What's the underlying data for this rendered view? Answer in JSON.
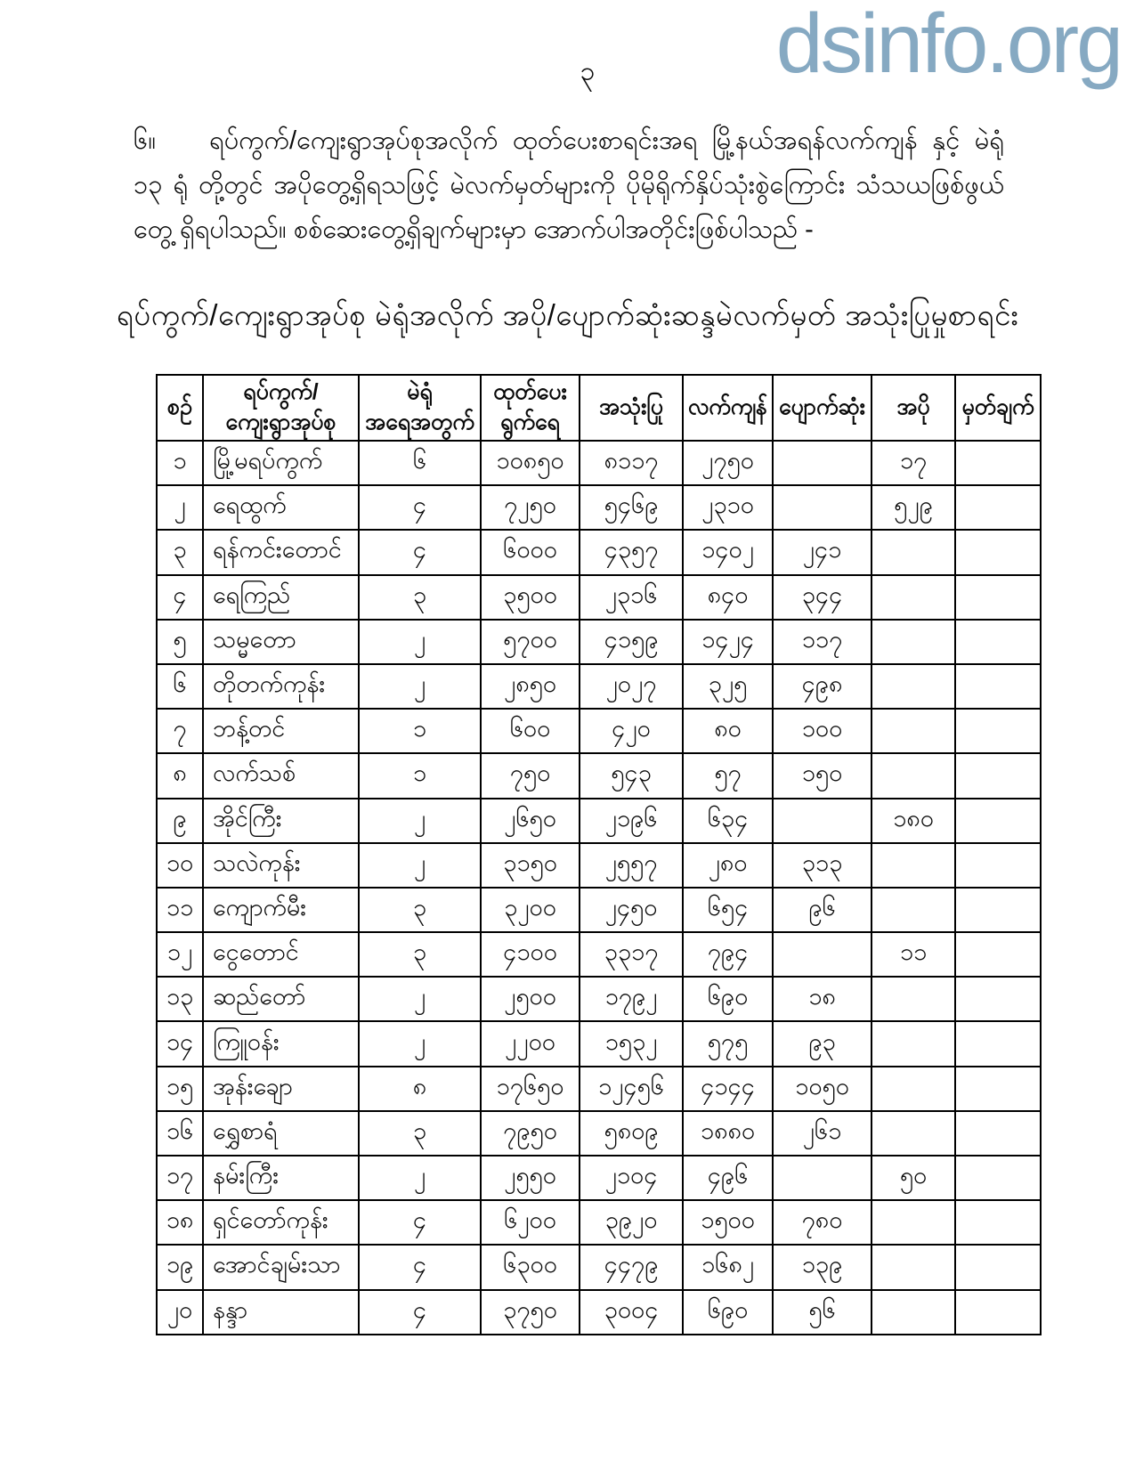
{
  "colors": {
    "watermark_blue": "#86a9c2",
    "text": "#0a0a0a",
    "table_border": "#000000",
    "background": "#ffffff"
  },
  "page": {
    "number": "၃",
    "watermark": "dsinfo.org"
  },
  "paragraph": {
    "number": "၆။",
    "text": "ရပ်ကွက်/ကျေးရွာအုပ်စုအလိုက် ထုတ်ပေးစာရင်းအရ မြို့နယ်အရန်လက်ကျန် နှင့် မဲရုံ ၁၃ ရုံ တို့တွင် အပိုတွေ့ရှိရသဖြင့် မဲလက်မှတ်များကို ပိုမိုရိုက်နှိပ်သုံးစွဲကြောင်း သံသယဖြစ်ဖွယ်တွေ့ ရှိရပါသည်။ စစ်ဆေးတွေ့ရှိချက်များမှာ အောက်ပါအတိုင်းဖြစ်ပါသည် -"
  },
  "table": {
    "title": "ရပ်ကွက်/ကျေးရွာအုပ်စု မဲရုံအလိုက် အပို/ပျောက်ဆုံးဆန္ဒမဲလက်မှတ် အသုံးပြုမှုစာရင်း",
    "headers": [
      "စဉ်",
      "ရပ်ကွက်/\nကျေးရွာအုပ်စု",
      "မဲရုံ\nအရေအတွက်",
      "ထုတ်ပေး\nရွက်ရေ",
      "အသုံးပြု",
      "လက်ကျန်",
      "ပျောက်ဆုံး",
      "အပို",
      "မှတ်ချက်"
    ],
    "rows": [
      [
        "၁",
        "မြို့မရပ်ကွက်",
        "၆",
        "၁၀၈၅၀",
        "၈၁၁၇",
        "၂၇၅၀",
        "",
        "၁၇",
        ""
      ],
      [
        "၂",
        "ရေထွက်",
        "၄",
        "၇၂၅၀",
        "၅၄၆၉",
        "၂၃၁၀",
        "",
        "၅၂၉",
        ""
      ],
      [
        "၃",
        "ရန်ကင်းတောင်",
        "၄",
        "၆၀၀၀",
        "၄၃၅၇",
        "၁၄၀၂",
        "၂၄၁",
        "",
        ""
      ],
      [
        "၄",
        "ရေကြည်",
        "၃",
        "၃၅၀၀",
        "၂၃၁၆",
        "၈၄၀",
        "၃၄၄",
        "",
        ""
      ],
      [
        "၅",
        "သမ္မတော",
        "၂",
        "၅၇၀၀",
        "၄၁၅၉",
        "၁၄၂၄",
        "၁၁၇",
        "",
        ""
      ],
      [
        "၆",
        "တိုတက်ကုန်း",
        "၂",
        "၂၈၅၀",
        "၂၀၂၇",
        "၃၂၅",
        "၄၉၈",
        "",
        ""
      ],
      [
        "၇",
        "ဘန့်တင်",
        "၁",
        "၆၀၀",
        "၄၂၀",
        "၈၀",
        "၁၀၀",
        "",
        ""
      ],
      [
        "၈",
        "လက်သစ်",
        "၁",
        "၇၅၀",
        "၅၄၃",
        "၅၇",
        "၁၅၀",
        "",
        ""
      ],
      [
        "၉",
        "အိုင်ကြီး",
        "၂",
        "၂၆၅၀",
        "၂၁၉၆",
        "၆၃၄",
        "",
        "၁၈၀",
        ""
      ],
      [
        "၁၀",
        "သလဲကုန်း",
        "၂",
        "၃၁၅၀",
        "၂၅၅၇",
        "၂၈၀",
        "၃၁၃",
        "",
        ""
      ],
      [
        "၁၁",
        "ကျောက်မီး",
        "၃",
        "၃၂၀၀",
        "၂၄၅၀",
        "၆၅၄",
        "၉၆",
        "",
        ""
      ],
      [
        "၁၂",
        "ငွေတောင်",
        "၃",
        "၄၁၀၀",
        "၃၃၁၇",
        "၇၉၄",
        "",
        "၁၁",
        ""
      ],
      [
        "၁၃",
        "ဆည်တော်",
        "၂",
        "၂၅၀၀",
        "၁၇၉၂",
        "၆၉၀",
        "၁၈",
        "",
        ""
      ],
      [
        "၁၄",
        "ကြူဝန်း",
        "၂",
        "၂၂၀၀",
        "၁၅၃၂",
        "၅၇၅",
        "၉၃",
        "",
        ""
      ],
      [
        "၁၅",
        "အုန်းချော",
        "၈",
        "၁၇၆၅၀",
        "၁၂၄၅၆",
        "၄၁၄၄",
        "၁၀၅၀",
        "",
        ""
      ],
      [
        "၁၆",
        "ရွှေစာရံ",
        "၃",
        "၇၉၅၀",
        "၅၈၀၉",
        "၁၈၈၀",
        "၂၆၁",
        "",
        ""
      ],
      [
        "၁၇",
        "နမ်းကြီး",
        "၂",
        "၂၅၅၀",
        "၂၁၀၄",
        "၄၉၆",
        "",
        "၅၀",
        ""
      ],
      [
        "၁၈",
        "ရှင်တော်ကုန်း",
        "၄",
        "၆၂၀၀",
        "၃၉၂၀",
        "၁၅၀၀",
        "၇၈၀",
        "",
        ""
      ],
      [
        "၁၉",
        "အောင်ချမ်းသာ",
        "၄",
        "၆၃၀၀",
        "၄၄၇၉",
        "၁၆၈၂",
        "၁၃၉",
        "",
        ""
      ],
      [
        "၂၀",
        "နန္ဒာ",
        "၄",
        "၃၇၅၀",
        "၃၀၀၄",
        "၆၉၀",
        "၅၆",
        "",
        ""
      ]
    ]
  }
}
